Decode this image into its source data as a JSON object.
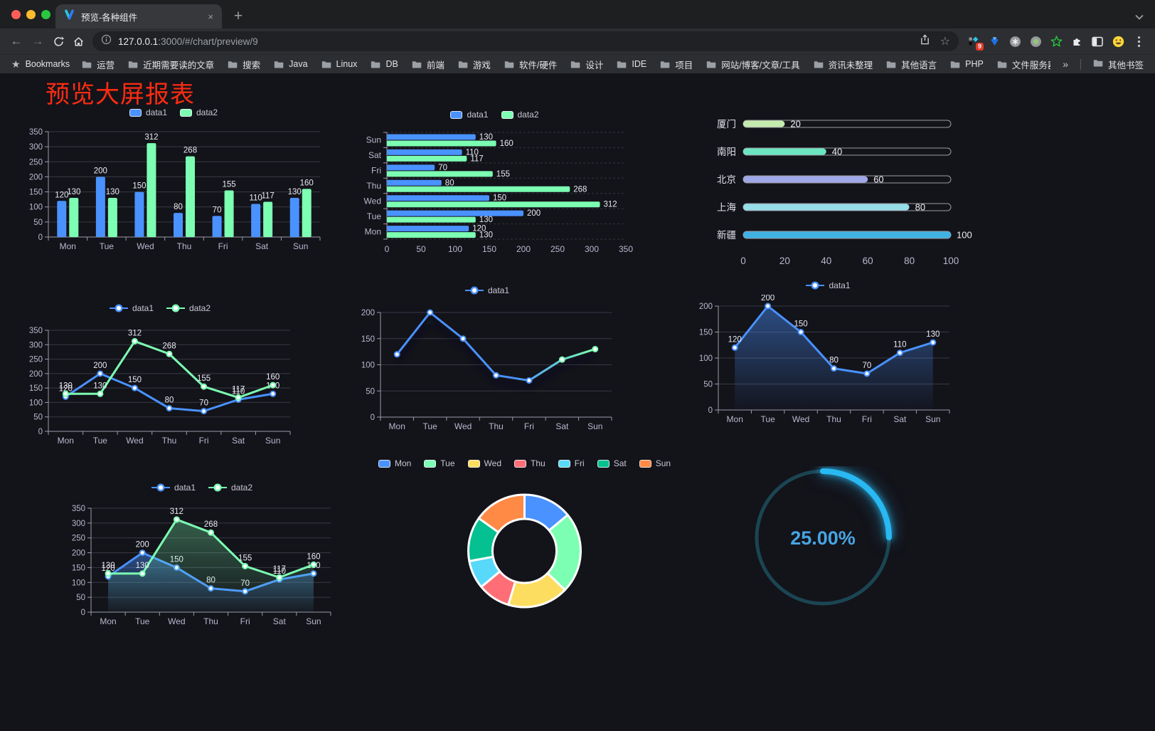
{
  "browser": {
    "tab_title": "预览-各种组件",
    "close_glyph": "×",
    "new_tab_glyph": "+",
    "back_glyph": "←",
    "forward_glyph": "→",
    "star_glyph": "☆",
    "bookmark_star_glyph": "★",
    "url_host": "127.0.0.1",
    "url_rest": ":3000/#/chart/preview/9",
    "bookmarks_label": "Bookmarks",
    "bookmarks": [
      "运营",
      "近期需要读的文章",
      "搜索",
      "Java",
      "Linux",
      "DB",
      "前端",
      "游戏",
      "软件/硬件",
      "设计",
      "IDE",
      "项目",
      "网站/博客/文章/工具",
      "资讯未整理",
      "其他语言",
      "PHP",
      "文件服务器"
    ],
    "overflow_chevron": "»",
    "other_bookmarks": "其他书签",
    "extension_badge": "9"
  },
  "page": {
    "title": "预览大屏报表",
    "title_color": "#fb2c10",
    "background": "#13131a"
  },
  "chart_data": [
    {
      "id": "grouped-bar",
      "type": "bar",
      "categories": [
        "Mon",
        "Tue",
        "Wed",
        "Thu",
        "Fri",
        "Sat",
        "Sun"
      ],
      "series": [
        {
          "name": "data1",
          "color": "#4992ff",
          "values": [
            120,
            200,
            150,
            80,
            70,
            110,
            130
          ]
        },
        {
          "name": "data2",
          "color": "#7cffb2",
          "values": [
            130,
            130,
            312,
            268,
            155,
            117,
            160
          ]
        }
      ],
      "ylim": [
        0,
        350
      ],
      "ystep": 50,
      "legend_position": "top",
      "grid": true
    },
    {
      "id": "horizontal-bar",
      "type": "bar-horizontal",
      "categories": [
        "Mon",
        "Tue",
        "Wed",
        "Thu",
        "Fri",
        "Sat",
        "Sun"
      ],
      "series": [
        {
          "name": "data1",
          "color": "#4992ff",
          "values": [
            120,
            200,
            150,
            80,
            70,
            110,
            130
          ]
        },
        {
          "name": "data2",
          "color": "#7cffb2",
          "values": [
            130,
            130,
            312,
            268,
            155,
            117,
            160
          ]
        }
      ],
      "xlim": [
        0,
        350
      ],
      "xstep": 50,
      "legend_position": "top"
    },
    {
      "id": "city-progress",
      "type": "bar-progress",
      "categories": [
        "厦门",
        "南阳",
        "北京",
        "上海",
        "新疆"
      ],
      "values": [
        20,
        40,
        60,
        80,
        100
      ],
      "colors": [
        "#c4ebad",
        "#6be6c1",
        "#a0a7e6",
        "#96dee8",
        "#3fb1e3"
      ],
      "xlim": [
        0,
        100
      ],
      "xticks": [
        0,
        20,
        40,
        60,
        80,
        100
      ]
    },
    {
      "id": "line-two-series",
      "type": "line",
      "labels": true,
      "area": false,
      "categories": [
        "Mon",
        "Tue",
        "Wed",
        "Thu",
        "Fri",
        "Sat",
        "Sun"
      ],
      "series": [
        {
          "name": "data1",
          "color": "#4992ff",
          "values": [
            120,
            200,
            150,
            80,
            70,
            110,
            130
          ]
        },
        {
          "name": "data2",
          "color": "#7cffb2",
          "values": [
            130,
            130,
            312,
            268,
            155,
            117,
            160
          ]
        }
      ],
      "ylim": [
        0,
        350
      ],
      "ystep": 50,
      "legend_position": "top"
    },
    {
      "id": "line-gradient",
      "type": "line",
      "labels": false,
      "area": false,
      "shadow": true,
      "categories": [
        "Mon",
        "Tue",
        "Wed",
        "Thu",
        "Fri",
        "Sat",
        "Sun"
      ],
      "series": [
        {
          "name": "data1",
          "color": "#4992ff",
          "color_end": "#7cffb2",
          "values": [
            120,
            200,
            150,
            80,
            70,
            110,
            130
          ]
        }
      ],
      "ylim": [
        0,
        200
      ],
      "ystep": 50,
      "legend_position": "top"
    },
    {
      "id": "area-single",
      "type": "line",
      "labels": true,
      "area": true,
      "categories": [
        "Mon",
        "Tue",
        "Wed",
        "Thu",
        "Fri",
        "Sat",
        "Sun"
      ],
      "series": [
        {
          "name": "data1",
          "color": "#4992ff",
          "values": [
            120,
            200,
            150,
            80,
            70,
            110,
            130
          ]
        }
      ],
      "ylim": [
        0,
        200
      ],
      "ystep": 50,
      "legend_position": "top"
    },
    {
      "id": "line-area-two",
      "type": "line",
      "labels": true,
      "area": true,
      "categories": [
        "Mon",
        "Tue",
        "Wed",
        "Thu",
        "Fri",
        "Sat",
        "Sun"
      ],
      "series": [
        {
          "name": "data1",
          "color": "#4992ff",
          "values": [
            120,
            200,
            150,
            80,
            70,
            110,
            130
          ]
        },
        {
          "name": "data2",
          "color": "#7cffb2",
          "values": [
            130,
            130,
            312,
            268,
            155,
            117,
            160
          ]
        }
      ],
      "ylim": [
        0,
        350
      ],
      "ystep": 50,
      "legend_position": "top"
    },
    {
      "id": "donut",
      "type": "pie",
      "categories": [
        "Mon",
        "Tue",
        "Wed",
        "Thu",
        "Fri",
        "Sat",
        "Sun"
      ],
      "values": [
        120,
        200,
        150,
        80,
        70,
        110,
        130
      ],
      "colors": [
        "#4992ff",
        "#7cffb2",
        "#fddd60",
        "#ff6e76",
        "#58d9f9",
        "#05c091",
        "#ff8a45"
      ],
      "inner_radius_ratio": 0.57,
      "legend_position": "top"
    },
    {
      "id": "gauge",
      "type": "gauge",
      "value": 25,
      "label": "25.00%",
      "progress_color": "#29b9f2",
      "track_color": "#1b4552",
      "text_color": "#46a5e2"
    }
  ]
}
